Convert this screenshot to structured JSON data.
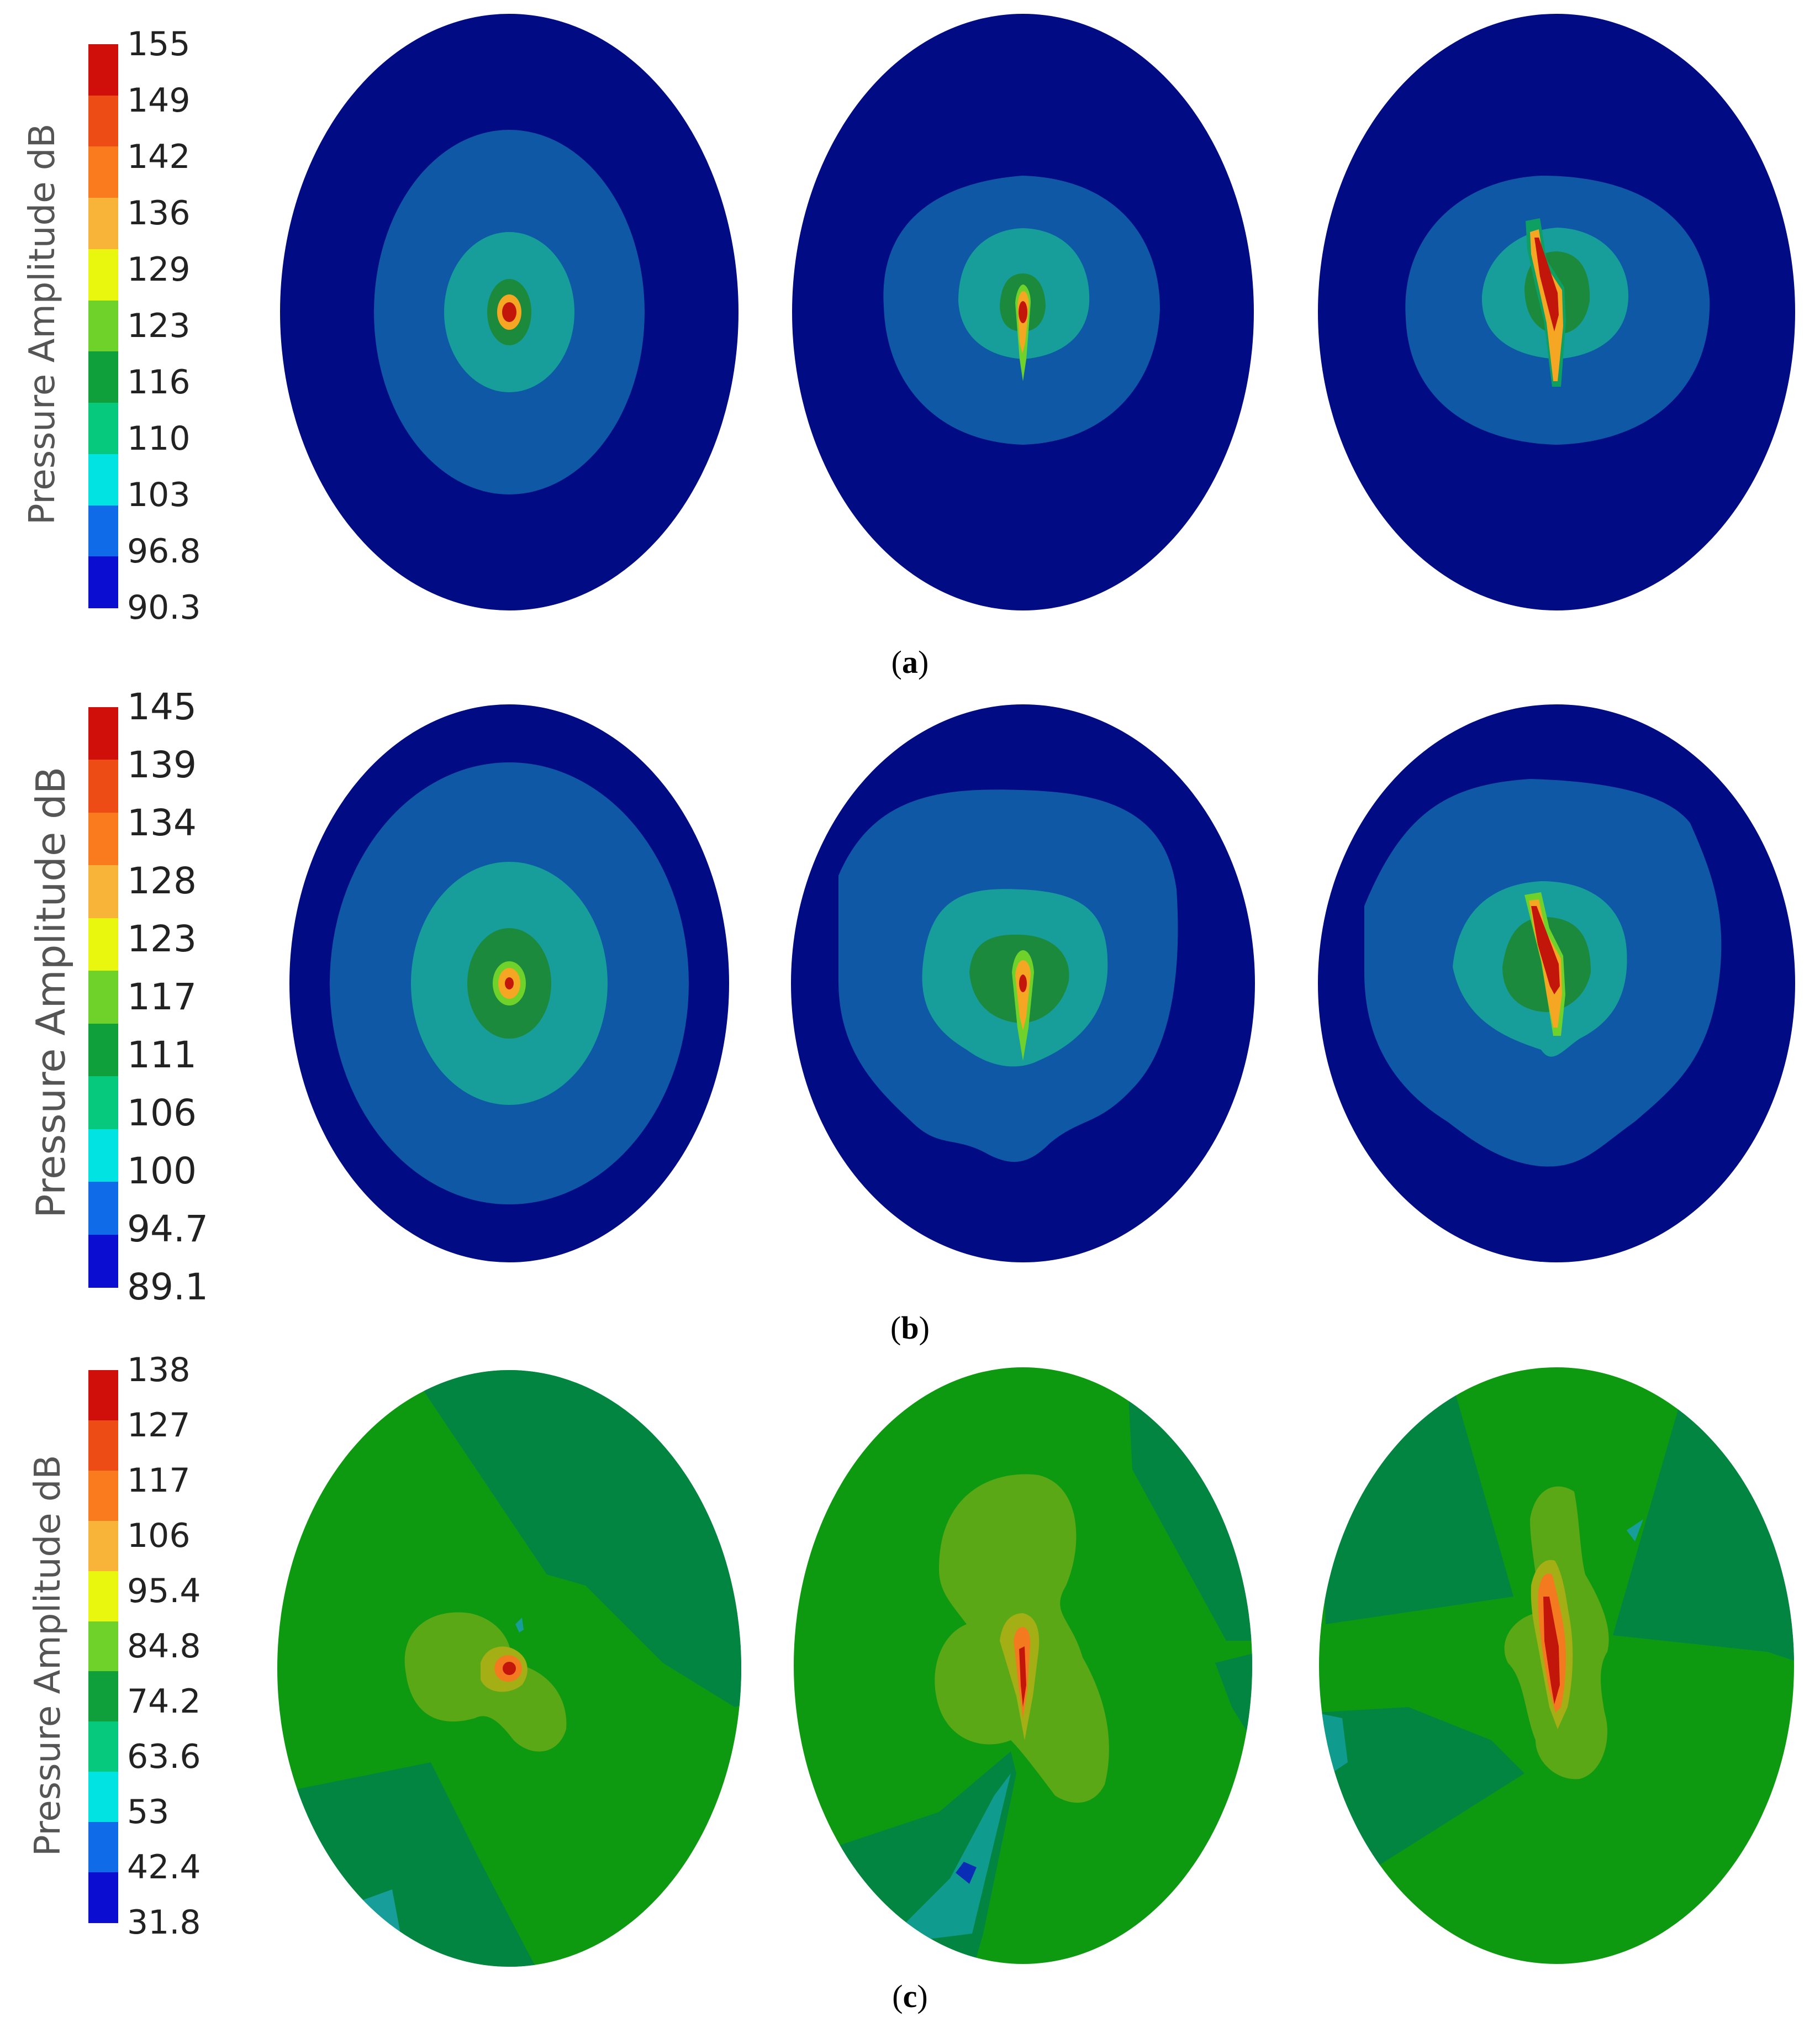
{
  "legend_title": "Pressure Amplitude dB",
  "colors": {
    "navy": "#000B84",
    "mid_blue": "#0E58A6",
    "teal": "#179E9A",
    "green_a": "#0E9F62",
    "dark_green": "#1C8A3C",
    "orange": "#F47A1F",
    "red": "#C2160B",
    "light_green": "#0D9A11",
    "med_green": "#038542",
    "olive": "#5BA816",
    "khaki": "#A3AF14",
    "cyan_teal": "#0F9C8F",
    "blue_dark": "#0A2DB6",
    "yellow_orange": "#F5A623"
  },
  "scale_colors": [
    "#0B0ED0",
    "#0F6BE8",
    "#00E3E3",
    "#06C97D",
    "#0FA03C",
    "#6FD22B",
    "#E8F70D",
    "#F7B438",
    "#F97B1E",
    "#EE4C15",
    "#D00E0A"
  ],
  "panels": [
    {
      "caption_letter": "a",
      "ticks": [
        "155",
        "149",
        "142",
        "136",
        "129",
        "123",
        "116",
        "110",
        "103",
        "96.8",
        "90.3"
      ]
    },
    {
      "caption_letter": "b",
      "ticks": [
        "145",
        "139",
        "134",
        "128",
        "123",
        "117",
        "111",
        "106",
        "100",
        "94.7",
        "89.1"
      ]
    },
    {
      "caption_letter": "c",
      "ticks": [
        "138",
        "127",
        "117",
        "106",
        "95.4",
        "84.8",
        "74.2",
        "63.6",
        "53",
        "42.4",
        "31.8"
      ]
    }
  ]
}
